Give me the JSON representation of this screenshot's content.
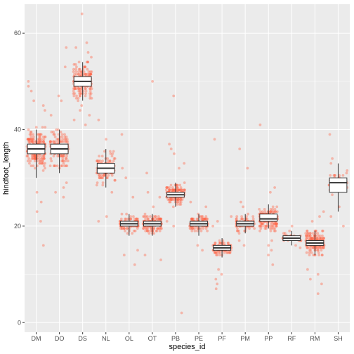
{
  "chart_data": {
    "type": "box",
    "title": "",
    "xlabel": "species_id",
    "ylabel": "hindfoot_length",
    "categories": [
      "DM",
      "DO",
      "DS",
      "NL",
      "OL",
      "OT",
      "PB",
      "PE",
      "PF",
      "PM",
      "PP",
      "RF",
      "RM",
      "SH"
    ],
    "ylim": [
      -2,
      66
    ],
    "yticks": [
      0,
      20,
      40,
      60
    ],
    "grid": true,
    "background": "#ebebeb",
    "grid_color": "#ffffff",
    "point_color": "#ff6347",
    "point_opacity": 0.4,
    "box_fill": "#ffffff",
    "box_stroke": "#333333",
    "boxes": [
      {
        "category": "DM",
        "lower_whisker": 30,
        "q1": 35,
        "median": 36,
        "q3": 37,
        "upper_whisker": 40
      },
      {
        "category": "DO",
        "lower_whisker": 31,
        "q1": 35,
        "median": 36,
        "q3": 37,
        "upper_whisker": 40
      },
      {
        "category": "DS",
        "lower_whisker": 46,
        "q1": 49,
        "median": 50,
        "q3": 51,
        "upper_whisker": 54
      },
      {
        "category": "NL",
        "lower_whisker": 28,
        "q1": 31,
        "median": 32,
        "q3": 33,
        "upper_whisker": 36
      },
      {
        "category": "OL",
        "lower_whisker": 18,
        "q1": 20,
        "median": 20.5,
        "q3": 21,
        "upper_whisker": 22.5
      },
      {
        "category": "OT",
        "lower_whisker": 18,
        "q1": 20,
        "median": 20.5,
        "q3": 21,
        "upper_whisker": 22.5
      },
      {
        "category": "PB",
        "lower_whisker": 24,
        "q1": 26,
        "median": 26.5,
        "q3": 27,
        "upper_whisker": 29
      },
      {
        "category": "PE",
        "lower_whisker": 18,
        "q1": 20,
        "median": 20.5,
        "q3": 21,
        "upper_whisker": 22.5
      },
      {
        "category": "PF",
        "lower_whisker": 13.5,
        "q1": 15,
        "median": 15.5,
        "q3": 16,
        "upper_whisker": 17.5
      },
      {
        "category": "PM",
        "lower_whisker": 18.5,
        "q1": 20,
        "median": 20.5,
        "q3": 21,
        "upper_whisker": 22.5
      },
      {
        "category": "PP",
        "lower_whisker": 19.5,
        "q1": 21,
        "median": 21.5,
        "q3": 22.5,
        "upper_whisker": 24.5
      },
      {
        "category": "RF",
        "lower_whisker": 16,
        "q1": 17,
        "median": 17.5,
        "q3": 18,
        "upper_whisker": 19
      },
      {
        "category": "RM",
        "lower_whisker": 14,
        "q1": 16,
        "median": 16.5,
        "q3": 17,
        "upper_whisker": 19
      },
      {
        "category": "SH",
        "lower_whisker": 23,
        "q1": 27,
        "median": 29,
        "q3": 30,
        "upper_whisker": 33
      }
    ],
    "jitter_points": [
      {
        "category": "DM",
        "center": 36,
        "spread": 3.5,
        "count": 220,
        "outliers": [
          16,
          21,
          23,
          25,
          27,
          44,
          45,
          46,
          48,
          49,
          50
        ]
      },
      {
        "category": "DO",
        "center": 36,
        "spread": 3,
        "count": 140,
        "outliers": [
          26,
          27,
          28,
          29,
          43,
          46,
          47,
          53,
          57
        ]
      },
      {
        "category": "DS",
        "center": 50,
        "spread": 3,
        "count": 180,
        "outliers": [
          41,
          42,
          43,
          44,
          45,
          55,
          56,
          57,
          58,
          64
        ]
      },
      {
        "category": "NL",
        "center": 32,
        "spread": 2.8,
        "count": 120,
        "outliers": [
          21,
          22,
          27,
          38,
          42
        ]
      },
      {
        "category": "OL",
        "center": 20.5,
        "spread": 1.5,
        "count": 110,
        "outliers": [
          12,
          14,
          15,
          26,
          30,
          32,
          39
        ]
      },
      {
        "category": "OT",
        "center": 20.5,
        "spread": 1.8,
        "count": 130,
        "outliers": [
          13,
          14,
          24,
          26,
          27,
          31,
          50
        ]
      },
      {
        "category": "PB",
        "center": 26.5,
        "spread": 1.8,
        "count": 150,
        "outliers": [
          2,
          20,
          21,
          32,
          33,
          35,
          36,
          37,
          47
        ]
      },
      {
        "category": "PE",
        "center": 20.5,
        "spread": 1.5,
        "count": 110,
        "outliers": [
          15,
          16,
          24,
          25
        ]
      },
      {
        "category": "PF",
        "center": 15.5,
        "spread": 1.3,
        "count": 110,
        "outliers": [
          7,
          8,
          9,
          10,
          11,
          20,
          21,
          22,
          38
        ]
      },
      {
        "category": "PM",
        "center": 20.5,
        "spread": 1.4,
        "count": 100,
        "outliers": [
          16,
          17,
          24,
          25,
          32,
          36
        ]
      },
      {
        "category": "PP",
        "center": 21.5,
        "spread": 2,
        "count": 170,
        "outliers": [
          12,
          14,
          15,
          16,
          17,
          27,
          28,
          41
        ]
      },
      {
        "category": "RF",
        "center": 17.5,
        "spread": 0.7,
        "count": 30,
        "outliers": [
          15.5,
          16,
          19,
          20
        ]
      },
      {
        "category": "RM",
        "center": 16.5,
        "spread": 2,
        "count": 200,
        "outliers": [
          6,
          8,
          9,
          10,
          11,
          21,
          22,
          23
        ]
      },
      {
        "category": "SH",
        "center": 29,
        "spread": 2,
        "count": 50,
        "outliers": [
          20,
          22,
          24,
          33,
          34,
          39
        ]
      }
    ]
  }
}
